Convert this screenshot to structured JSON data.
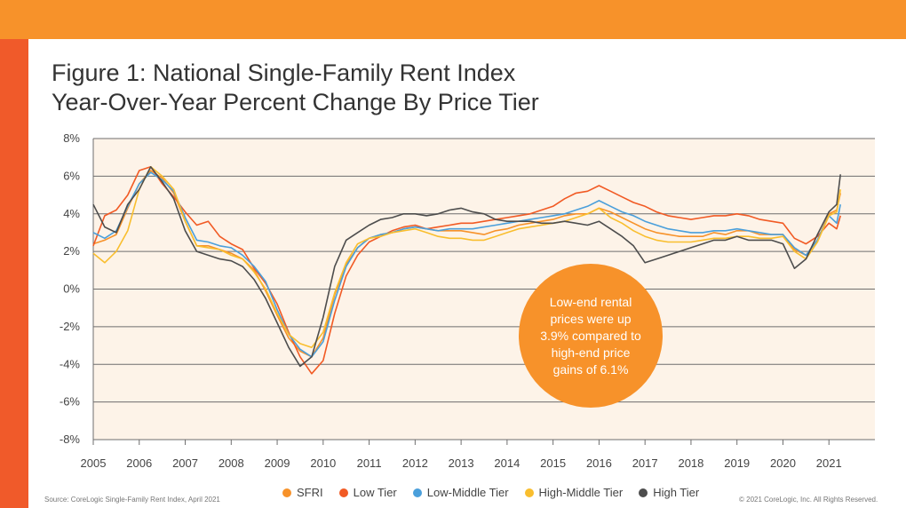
{
  "colors": {
    "top_bar": "#F7922A",
    "side_bar": "#F05A2A",
    "plot_bg": "#FDF3E8",
    "grid": "#6E6E6E",
    "callout": "#F7922A"
  },
  "title": {
    "line1": "Figure 1: National Single-Family Rent Index",
    "line2": "Year-Over-Year Percent Change By Price Tier"
  },
  "source": "Source: CoreLogic Single-Family Rent Index, April 2021",
  "copyright": "© 2021 CoreLogic, Inc. All Rights Reserved.",
  "callout": {
    "text": "Low-end rental prices were up 3.9% compared to high-end price gains of 6.1%"
  },
  "chart_data": {
    "type": "line",
    "title": "Figure 1: National Single-Family Rent Index Year-Over-Year Percent Change By Price Tier",
    "xlabel": "",
    "ylabel": "",
    "xlim": [
      2005,
      2022
    ],
    "ylim": [
      -8,
      8
    ],
    "grid": true,
    "legend": "bottom",
    "y_ticks": [
      8,
      6,
      4,
      2,
      0,
      -2,
      -4,
      -6,
      -8
    ],
    "y_tick_labels": [
      "8%",
      "6%",
      "4%",
      "2%",
      "0%",
      "-2%",
      "-4%",
      "-6%",
      "-8%"
    ],
    "x_ticks": [
      2005,
      2006,
      2007,
      2008,
      2009,
      2010,
      2011,
      2012,
      2013,
      2014,
      2015,
      2016,
      2017,
      2018,
      2019,
      2020,
      2021
    ],
    "x_tick_labels": [
      "2005",
      "2006",
      "2007",
      "2008",
      "2009",
      "2010",
      "2011",
      "2012",
      "2013",
      "2014",
      "2015",
      "2016",
      "2017",
      "2018",
      "2019",
      "2020",
      "2021"
    ],
    "series": [
      {
        "name": "SFRI",
        "color": "#F7922A",
        "x": [
          2005.0,
          2005.25,
          2005.5,
          2005.75,
          2006.0,
          2006.25,
          2006.5,
          2006.75,
          2007.0,
          2007.25,
          2007.5,
          2007.75,
          2008.0,
          2008.25,
          2008.5,
          2008.75,
          2009.0,
          2009.25,
          2009.5,
          2009.75,
          2010.0,
          2010.25,
          2010.5,
          2010.75,
          2011.0,
          2011.25,
          2011.5,
          2011.75,
          2012.0,
          2012.25,
          2012.5,
          2012.75,
          2013.0,
          2013.25,
          2013.5,
          2013.75,
          2014.0,
          2014.25,
          2014.5,
          2014.75,
          2015.0,
          2015.25,
          2015.5,
          2015.75,
          2016.0,
          2016.25,
          2016.5,
          2016.75,
          2017.0,
          2017.25,
          2017.5,
          2017.75,
          2018.0,
          2018.25,
          2018.5,
          2018.75,
          2019.0,
          2019.25,
          2019.5,
          2019.75,
          2020.0,
          2020.25,
          2020.5,
          2020.75,
          2021.0,
          2021.17,
          2021.25
        ],
        "y": [
          2.4,
          2.6,
          2.9,
          4.3,
          5.6,
          6.3,
          5.9,
          5.1,
          3.6,
          2.3,
          2.3,
          2.1,
          1.9,
          1.6,
          1.0,
          -0.1,
          -1.4,
          -2.6,
          -3.3,
          -3.6,
          -2.6,
          -0.3,
          1.3,
          2.2,
          2.7,
          2.9,
          3.0,
          3.2,
          3.3,
          3.2,
          3.1,
          3.1,
          3.1,
          3.0,
          2.9,
          3.1,
          3.2,
          3.4,
          3.5,
          3.6,
          3.7,
          3.9,
          4.0,
          4.0,
          4.3,
          4.1,
          3.8,
          3.5,
          3.2,
          3.0,
          2.9,
          2.8,
          2.8,
          2.8,
          3.0,
          2.9,
          3.1,
          3.1,
          2.9,
          2.9,
          2.9,
          2.1,
          1.8,
          2.6,
          4.0,
          4.2,
          5.1
        ]
      },
      {
        "name": "Low Tier",
        "color": "#F15A24",
        "x": [
          2005.0,
          2005.25,
          2005.5,
          2005.75,
          2006.0,
          2006.25,
          2006.5,
          2006.75,
          2007.0,
          2007.25,
          2007.5,
          2007.75,
          2008.0,
          2008.25,
          2008.5,
          2008.75,
          2009.0,
          2009.25,
          2009.5,
          2009.75,
          2010.0,
          2010.25,
          2010.5,
          2010.75,
          2011.0,
          2011.25,
          2011.5,
          2011.75,
          2012.0,
          2012.25,
          2012.5,
          2012.75,
          2013.0,
          2013.25,
          2013.5,
          2013.75,
          2014.0,
          2014.25,
          2014.5,
          2014.75,
          2015.0,
          2015.25,
          2015.5,
          2015.75,
          2016.0,
          2016.25,
          2016.5,
          2016.75,
          2017.0,
          2017.25,
          2017.5,
          2017.75,
          2018.0,
          2018.25,
          2018.5,
          2018.75,
          2019.0,
          2019.25,
          2019.5,
          2019.75,
          2020.0,
          2020.25,
          2020.5,
          2020.75,
          2021.0,
          2021.17,
          2021.25
        ],
        "y": [
          2.3,
          3.9,
          4.2,
          5.0,
          6.3,
          6.5,
          5.6,
          4.9,
          4.1,
          3.4,
          3.6,
          2.8,
          2.4,
          2.1,
          1.1,
          0.3,
          -0.8,
          -2.3,
          -3.6,
          -4.5,
          -3.8,
          -1.3,
          0.7,
          1.8,
          2.5,
          2.8,
          3.1,
          3.3,
          3.4,
          3.2,
          3.3,
          3.4,
          3.5,
          3.5,
          3.6,
          3.7,
          3.8,
          3.9,
          4.0,
          4.2,
          4.4,
          4.8,
          5.1,
          5.2,
          5.5,
          5.2,
          4.9,
          4.6,
          4.4,
          4.1,
          3.9,
          3.8,
          3.7,
          3.8,
          3.9,
          3.9,
          4.0,
          3.9,
          3.7,
          3.6,
          3.5,
          2.7,
          2.4,
          2.8,
          3.5,
          3.2,
          3.9
        ]
      },
      {
        "name": "Low-Middle Tier",
        "color": "#4A9FDB",
        "x": [
          2005.0,
          2005.25,
          2005.5,
          2005.75,
          2006.0,
          2006.25,
          2006.5,
          2006.75,
          2007.0,
          2007.25,
          2007.5,
          2007.75,
          2008.0,
          2008.25,
          2008.5,
          2008.75,
          2009.0,
          2009.25,
          2009.5,
          2009.75,
          2010.0,
          2010.25,
          2010.5,
          2010.75,
          2011.0,
          2011.25,
          2011.5,
          2011.75,
          2012.0,
          2012.25,
          2012.5,
          2012.75,
          2013.0,
          2013.25,
          2013.5,
          2013.75,
          2014.0,
          2014.25,
          2014.5,
          2014.75,
          2015.0,
          2015.25,
          2015.5,
          2015.75,
          2016.0,
          2016.25,
          2016.5,
          2016.75,
          2017.0,
          2017.25,
          2017.5,
          2017.75,
          2018.0,
          2018.25,
          2018.5,
          2018.75,
          2019.0,
          2019.25,
          2019.5,
          2019.75,
          2020.0,
          2020.25,
          2020.5,
          2020.75,
          2021.0,
          2021.17,
          2021.25
        ],
        "y": [
          3.0,
          2.7,
          3.1,
          4.4,
          5.6,
          6.2,
          5.8,
          5.2,
          3.8,
          2.6,
          2.5,
          2.3,
          2.2,
          1.8,
          1.2,
          0.4,
          -1.1,
          -2.4,
          -3.2,
          -3.6,
          -2.8,
          -0.6,
          1.2,
          2.2,
          2.7,
          2.9,
          3.0,
          3.2,
          3.3,
          3.2,
          3.1,
          3.2,
          3.2,
          3.2,
          3.3,
          3.4,
          3.5,
          3.6,
          3.7,
          3.8,
          3.9,
          4.0,
          4.2,
          4.4,
          4.7,
          4.4,
          4.1,
          3.9,
          3.6,
          3.4,
          3.2,
          3.1,
          3.0,
          3.0,
          3.1,
          3.1,
          3.2,
          3.1,
          3.0,
          2.9,
          2.9,
          2.2,
          1.8,
          2.6,
          3.9,
          3.5,
          4.5
        ]
      },
      {
        "name": "High-Middle Tier",
        "color": "#F9BE2E",
        "x": [
          2005.0,
          2005.25,
          2005.5,
          2005.75,
          2006.0,
          2006.25,
          2006.5,
          2006.75,
          2007.0,
          2007.25,
          2007.5,
          2007.75,
          2008.0,
          2008.25,
          2008.5,
          2008.75,
          2009.0,
          2009.25,
          2009.5,
          2009.75,
          2010.0,
          2010.25,
          2010.5,
          2010.75,
          2011.0,
          2011.25,
          2011.5,
          2011.75,
          2012.0,
          2012.25,
          2012.5,
          2012.75,
          2013.0,
          2013.25,
          2013.5,
          2013.75,
          2014.0,
          2014.25,
          2014.5,
          2014.75,
          2015.0,
          2015.25,
          2015.5,
          2015.75,
          2016.0,
          2016.25,
          2016.5,
          2016.75,
          2017.0,
          2017.25,
          2017.5,
          2017.75,
          2018.0,
          2018.25,
          2018.5,
          2018.75,
          2019.0,
          2019.25,
          2019.5,
          2019.75,
          2020.0,
          2020.25,
          2020.5,
          2020.75,
          2021.0,
          2021.17,
          2021.25
        ],
        "y": [
          1.9,
          1.4,
          2.0,
          3.1,
          5.3,
          6.5,
          6.0,
          5.3,
          3.6,
          2.3,
          2.2,
          2.1,
          1.8,
          1.6,
          0.9,
          0.0,
          -1.3,
          -2.4,
          -2.9,
          -3.1,
          -2.3,
          -0.2,
          1.4,
          2.4,
          2.7,
          2.8,
          3.0,
          3.1,
          3.2,
          3.0,
          2.8,
          2.7,
          2.7,
          2.6,
          2.6,
          2.8,
          3.0,
          3.2,
          3.3,
          3.4,
          3.5,
          3.6,
          3.8,
          4.0,
          4.3,
          3.8,
          3.5,
          3.1,
          2.8,
          2.6,
          2.5,
          2.5,
          2.5,
          2.6,
          2.7,
          2.7,
          2.8,
          2.8,
          2.7,
          2.7,
          2.8,
          2.0,
          1.6,
          2.5,
          3.9,
          4.1,
          5.3
        ]
      },
      {
        "name": "High Tier",
        "color": "#4D4D4D",
        "x": [
          2005.0,
          2005.25,
          2005.5,
          2005.75,
          2006.0,
          2006.25,
          2006.5,
          2006.75,
          2007.0,
          2007.25,
          2007.5,
          2007.75,
          2008.0,
          2008.25,
          2008.5,
          2008.75,
          2009.0,
          2009.25,
          2009.5,
          2009.75,
          2010.0,
          2010.25,
          2010.5,
          2010.75,
          2011.0,
          2011.25,
          2011.5,
          2011.75,
          2012.0,
          2012.25,
          2012.5,
          2012.75,
          2013.0,
          2013.25,
          2013.5,
          2013.75,
          2014.0,
          2014.25,
          2014.5,
          2014.75,
          2015.0,
          2015.25,
          2015.5,
          2015.75,
          2016.0,
          2016.25,
          2016.5,
          2016.75,
          2017.0,
          2017.25,
          2017.5,
          2017.75,
          2018.0,
          2018.25,
          2018.5,
          2018.75,
          2019.0,
          2019.25,
          2019.5,
          2019.75,
          2020.0,
          2020.25,
          2020.5,
          2020.75,
          2021.0,
          2021.17,
          2021.25
        ],
        "y": [
          4.5,
          3.3,
          3.0,
          4.5,
          5.3,
          6.5,
          5.7,
          4.8,
          3.1,
          2.0,
          1.8,
          1.6,
          1.5,
          1.2,
          0.5,
          -0.5,
          -1.8,
          -3.1,
          -4.1,
          -3.6,
          -1.5,
          1.2,
          2.6,
          3.0,
          3.4,
          3.7,
          3.8,
          4.0,
          4.0,
          3.9,
          4.0,
          4.2,
          4.3,
          4.1,
          4.0,
          3.7,
          3.6,
          3.6,
          3.6,
          3.5,
          3.5,
          3.6,
          3.5,
          3.4,
          3.6,
          3.2,
          2.8,
          2.3,
          1.4,
          1.6,
          1.8,
          2.0,
          2.2,
          2.4,
          2.6,
          2.6,
          2.8,
          2.6,
          2.6,
          2.6,
          2.4,
          1.1,
          1.6,
          2.9,
          4.1,
          4.5,
          6.1
        ]
      }
    ]
  }
}
